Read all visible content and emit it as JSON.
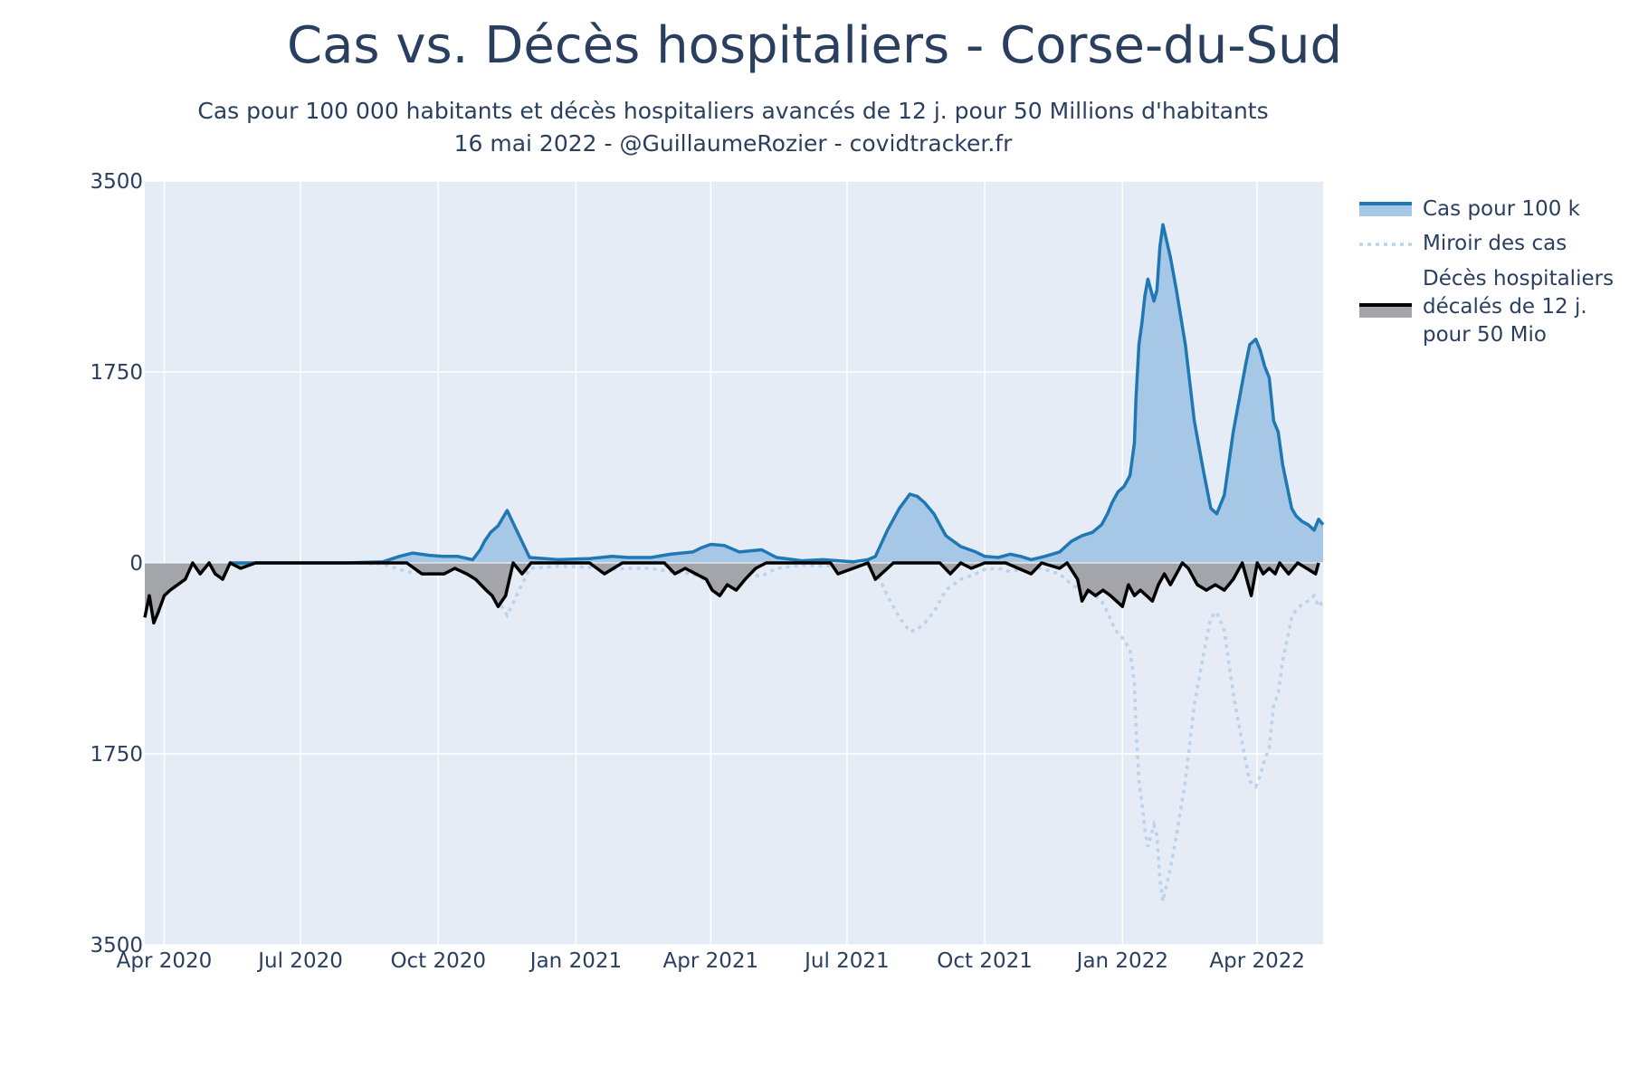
{
  "title": "Cas vs. Décès hospitaliers - Corse-du-Sud",
  "subtitle_line1": "Cas pour 100 000 habitants et décès hospitaliers avancés de 12 j. pour 50 Millions d'habitants",
  "subtitle_line2": "16 mai 2022 - @GuillaumeRozier - covidtracker.fr",
  "colors": {
    "plot_bg": "#e5ecf6",
    "cases_line": "#1f77b4",
    "cases_fill": "#a6c8e6",
    "mirror_line": "#b9d3ec",
    "deaths_line": "#000000",
    "deaths_fill": "#a3a5aa",
    "grid": "#ffffff",
    "text": "#2a3f5f"
  },
  "legend": {
    "cases": "Cas pour 100 k",
    "mirror": "Miroir des cas",
    "deaths_lines": [
      "Décès hospitaliers",
      "décalés de 12 j.",
      "pour 50 Mio"
    ]
  },
  "chart_data": {
    "type": "area",
    "x_range": [
      "2020-03-19",
      "2022-05-15"
    ],
    "y_range": [
      -3500,
      3500
    ],
    "y_tick_values": [
      3500,
      1750,
      0,
      -1750,
      -3500
    ],
    "y_tick_labels": [
      "3500",
      "1750",
      "0",
      "1750",
      "3500"
    ],
    "x_tick_dates": [
      "2020-04-01",
      "2020-07-01",
      "2020-10-01",
      "2021-01-01",
      "2021-04-01",
      "2021-07-01",
      "2021-10-01",
      "2022-01-01",
      "2022-04-01"
    ],
    "x_tick_labels": [
      "Apr 2020",
      "Jul 2020",
      "Oct 2020",
      "Jan 2021",
      "Apr 2021",
      "Jul 2021",
      "Oct 2021",
      "Jan 2022",
      "Apr 2022"
    ],
    "series": [
      {
        "name": "Cas pour 100 k",
        "style": "solid-filled",
        "x": [
          "2020-05-15",
          "2020-08-01",
          "2020-08-25",
          "2020-09-05",
          "2020-09-14",
          "2020-09-25",
          "2020-10-04",
          "2020-10-14",
          "2020-10-24",
          "2020-10-29",
          "2020-11-01",
          "2020-11-05",
          "2020-11-10",
          "2020-11-16",
          "2020-12-01",
          "2020-12-20",
          "2021-01-10",
          "2021-01-25",
          "2021-02-05",
          "2021-02-20",
          "2021-03-05",
          "2021-03-20",
          "2021-03-26",
          "2021-04-01",
          "2021-04-10",
          "2021-04-20",
          "2021-05-05",
          "2021-05-15",
          "2021-06-01",
          "2021-06-15",
          "2021-06-25",
          "2021-07-05",
          "2021-07-15",
          "2021-07-20",
          "2021-07-28",
          "2021-08-05",
          "2021-08-12",
          "2021-08-17",
          "2021-08-22",
          "2021-08-28",
          "2021-09-05",
          "2021-09-15",
          "2021-09-25",
          "2021-10-01",
          "2021-10-10",
          "2021-10-18",
          "2021-10-25",
          "2021-11-01",
          "2021-11-10",
          "2021-11-20",
          "2021-11-28",
          "2021-12-05",
          "2021-12-12",
          "2021-12-18",
          "2021-12-22",
          "2021-12-25",
          "2021-12-29",
          "2022-01-02",
          "2022-01-06",
          "2022-01-09",
          "2022-01-10",
          "2022-01-12",
          "2022-01-14",
          "2022-01-16",
          "2022-01-18",
          "2022-01-22",
          "2022-01-24",
          "2022-01-26",
          "2022-01-28",
          "2022-02-02",
          "2022-02-06",
          "2022-02-12",
          "2022-02-18",
          "2022-02-24",
          "2022-03-01",
          "2022-03-05",
          "2022-03-10",
          "2022-03-16",
          "2022-03-24",
          "2022-03-27",
          "2022-03-31",
          "2022-04-03",
          "2022-04-06",
          "2022-04-09",
          "2022-04-12",
          "2022-04-15",
          "2022-04-18",
          "2022-04-21",
          "2022-04-24",
          "2022-04-27",
          "2022-05-01",
          "2022-05-05",
          "2022-05-09",
          "2022-05-12",
          "2022-05-15"
        ],
        "y": [
          0,
          0,
          10,
          60,
          90,
          70,
          60,
          60,
          30,
          120,
          200,
          280,
          340,
          480,
          50,
          30,
          40,
          60,
          50,
          50,
          80,
          100,
          140,
          170,
          160,
          100,
          120,
          50,
          20,
          30,
          20,
          10,
          30,
          60,
          300,
          500,
          630,
          610,
          550,
          450,
          250,
          150,
          100,
          60,
          50,
          80,
          60,
          30,
          60,
          100,
          200,
          250,
          280,
          350,
          450,
          550,
          650,
          700,
          800,
          1100,
          1500,
          2000,
          2200,
          2450,
          2600,
          2400,
          2500,
          2900,
          3100,
          2800,
          2500,
          2000,
          1300,
          850,
          500,
          450,
          620,
          1200,
          1800,
          2000,
          2050,
          1950,
          1800,
          1700,
          1300,
          1200,
          900,
          700,
          500,
          430,
          380,
          350,
          300,
          400,
          350
        ]
      },
      {
        "name": "Miroir des cas",
        "style": "dotted",
        "mirror_of": "Cas pour 100 k"
      },
      {
        "name": "Décès hospitaliers décalés de 12 j. pour 50 Mio",
        "style": "solid-filled",
        "x": [
          "2020-03-19",
          "2020-03-22",
          "2020-03-25",
          "2020-03-28",
          "2020-04-01",
          "2020-04-05",
          "2020-04-10",
          "2020-04-15",
          "2020-04-20",
          "2020-04-25",
          "2020-05-01",
          "2020-05-05",
          "2020-05-10",
          "2020-05-15",
          "2020-05-22",
          "2020-06-01",
          "2020-09-10",
          "2020-09-20",
          "2020-10-05",
          "2020-10-12",
          "2020-10-20",
          "2020-10-26",
          "2020-11-02",
          "2020-11-06",
          "2020-11-10",
          "2020-11-15",
          "2020-11-20",
          "2020-11-26",
          "2020-12-02",
          "2020-12-10",
          "2021-01-10",
          "2021-01-20",
          "2021-02-01",
          "2021-03-01",
          "2021-03-08",
          "2021-03-15",
          "2021-03-22",
          "2021-03-29",
          "2021-04-02",
          "2021-04-07",
          "2021-04-12",
          "2021-04-18",
          "2021-04-24",
          "2021-05-01",
          "2021-05-08",
          "2021-05-15",
          "2021-06-01",
          "2021-06-20",
          "2021-06-25",
          "2021-07-15",
          "2021-07-20",
          "2021-08-01",
          "2021-09-01",
          "2021-09-08",
          "2021-09-15",
          "2021-09-22",
          "2021-10-01",
          "2021-10-15",
          "2021-11-01",
          "2021-11-08",
          "2021-11-20",
          "2021-11-25",
          "2021-12-02",
          "2021-12-05",
          "2021-12-09",
          "2021-12-14",
          "2021-12-19",
          "2021-12-24",
          "2021-12-28",
          "2022-01-01",
          "2022-01-05",
          "2022-01-09",
          "2022-01-13",
          "2022-01-17",
          "2022-01-21",
          "2022-01-25",
          "2022-01-29",
          "2022-02-02",
          "2022-02-06",
          "2022-02-10",
          "2022-02-14",
          "2022-02-20",
          "2022-02-26",
          "2022-03-04",
          "2022-03-10",
          "2022-03-16",
          "2022-03-22",
          "2022-03-28",
          "2022-04-01",
          "2022-04-05",
          "2022-04-09",
          "2022-04-13",
          "2022-04-16",
          "2022-04-22",
          "2022-04-28",
          "2022-05-04",
          "2022-05-10",
          "2022-05-12"
        ],
        "y": [
          -500,
          -300,
          -550,
          -450,
          -300,
          -250,
          -200,
          -150,
          0,
          -100,
          0,
          -100,
          -150,
          0,
          -50,
          0,
          0,
          -100,
          -100,
          -50,
          -100,
          -150,
          -250,
          -300,
          -400,
          -300,
          0,
          -100,
          0,
          0,
          0,
          -100,
          0,
          0,
          -100,
          -50,
          -100,
          -150,
          -250,
          -300,
          -200,
          -250,
          -150,
          -50,
          0,
          0,
          0,
          0,
          -100,
          0,
          -150,
          0,
          0,
          -100,
          0,
          -50,
          0,
          0,
          -100,
          0,
          -50,
          0,
          -150,
          -350,
          -250,
          -300,
          -250,
          -300,
          -350,
          -400,
          -200,
          -300,
          -250,
          -300,
          -350,
          -200,
          -100,
          -200,
          -100,
          0,
          -50,
          -200,
          -250,
          -200,
          -250,
          -150,
          0,
          -300,
          0,
          -100,
          -50,
          -100,
          0,
          -100,
          0,
          -50,
          -100,
          0
        ]
      }
    ]
  }
}
